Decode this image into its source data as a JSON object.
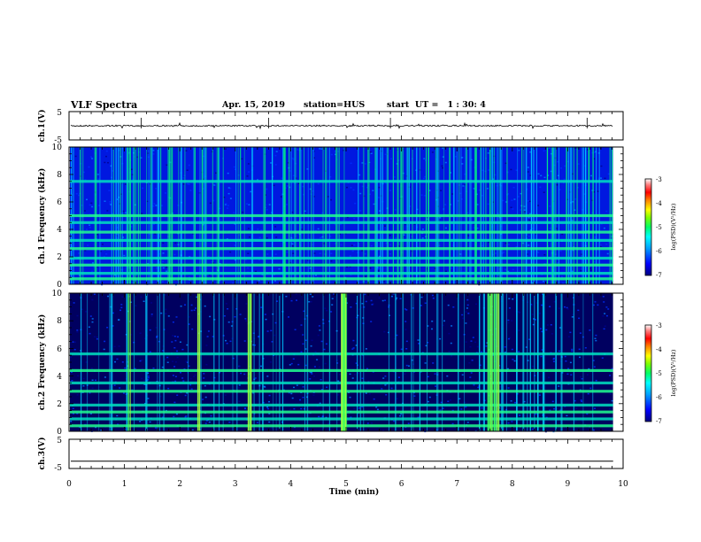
{
  "header": {
    "title": "VLF Spectra",
    "date": "Apr. 15, 2019",
    "station": "station=HUS",
    "start": "start  UT =   1 : 30: 4"
  },
  "chart_data": [
    {
      "type": "line",
      "panel": "ch1-waveform",
      "ylabel": "ch.1(V)",
      "ylim": [
        -5,
        5
      ],
      "yticks": [
        "5",
        "-5"
      ],
      "baseline": 0
    },
    {
      "type": "heatmap",
      "panel": "ch1-spectrogram",
      "ylabel": "ch.1 Frequency (kHz)",
      "ylim": [
        0,
        10
      ],
      "yticks": [
        "0",
        "2",
        "4",
        "6",
        "8",
        "10"
      ],
      "xlim": [
        0,
        10
      ],
      "color_scale": {
        "label": "log(PSD)(V²/Hz)",
        "range": [
          -7,
          -3
        ],
        "ticks": [
          "-3",
          "-4",
          "-5",
          "-6",
          "-7"
        ],
        "colormap": [
          "#000080",
          "#0000ff",
          "#00a0ff",
          "#00ffff",
          "#00ff66",
          "#80ff00",
          "#ffff00",
          "#ff8000",
          "#ff0000",
          "#ff8080",
          "#ffffff"
        ]
      },
      "bands_khz": [
        0.4,
        0.8,
        1.4,
        1.9,
        2.6,
        3.2,
        3.8,
        4.5,
        5.0,
        7.5
      ],
      "activity": "high"
    },
    {
      "type": "heatmap",
      "panel": "ch2-spectrogram",
      "ylabel": "ch.2 Frequency (kHz)",
      "ylim": [
        0,
        10
      ],
      "yticks": [
        "0",
        "2",
        "4",
        "6",
        "8",
        "10"
      ],
      "xlim": [
        0,
        10
      ],
      "color_scale": {
        "label": "log(PSD)(V²/Hz)",
        "range": [
          -7,
          -3
        ],
        "ticks": [
          "-3",
          "-4",
          "-5",
          "-6",
          "-7"
        ]
      },
      "bands_khz": [
        0.4,
        0.9,
        1.4,
        1.9,
        2.9,
        3.5,
        4.4,
        5.6
      ],
      "activity": "moderate"
    },
    {
      "type": "line",
      "panel": "ch3-waveform",
      "ylabel": "ch.3(V)",
      "ylim": [
        -5,
        5
      ],
      "yticks": [
        "5",
        "-5"
      ],
      "baseline": -2.5
    }
  ],
  "x_axis": {
    "label": "Time (min)",
    "range": [
      0,
      10
    ],
    "ticks": [
      "0",
      "1",
      "2",
      "3",
      "4",
      "5",
      "6",
      "7",
      "8",
      "9",
      "10"
    ],
    "data_end": 9.82
  }
}
